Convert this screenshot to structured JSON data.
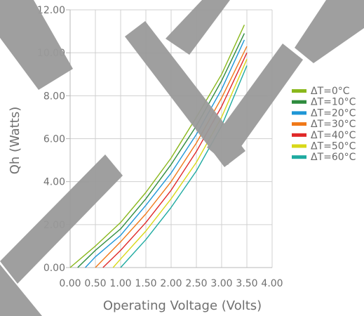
{
  "chart_data": {
    "type": "line",
    "xlabel": "Operating Voltage (Volts)",
    "ylabel": "Qh (Watts)",
    "xlim": [
      0,
      4
    ],
    "ylim": [
      0,
      12
    ],
    "x_ticks": [
      "0.00",
      "0.50",
      "1.00",
      "1.50",
      "2.00",
      "2.50",
      "3.00",
      "3.50",
      "4.00"
    ],
    "y_ticks": [
      "0.00",
      "2.00",
      "4.00",
      "6.00",
      "8.00",
      "10.00",
      "12.00"
    ],
    "grid": true,
    "legend_position": "right",
    "series": [
      {
        "name": "ΔT=0°C",
        "color": "#8ab81c",
        "points": [
          [
            0.0,
            0.0
          ],
          [
            0.5,
            1.0
          ],
          [
            1.0,
            2.1
          ],
          [
            1.5,
            3.5
          ],
          [
            2.0,
            5.1
          ],
          [
            2.5,
            7.0
          ],
          [
            3.0,
            9.0
          ],
          [
            3.45,
            11.3
          ]
        ]
      },
      {
        "name": "ΔT=10°C",
        "color": "#2e8b3e",
        "points": [
          [
            0.15,
            0.0
          ],
          [
            0.5,
            0.8
          ],
          [
            1.0,
            1.8
          ],
          [
            1.5,
            3.2
          ],
          [
            2.0,
            4.8
          ],
          [
            2.5,
            6.6
          ],
          [
            3.0,
            8.7
          ],
          [
            3.45,
            10.9
          ]
        ]
      },
      {
        "name": "ΔT=20°C",
        "color": "#1e96d6",
        "points": [
          [
            0.3,
            0.0
          ],
          [
            0.5,
            0.5
          ],
          [
            1.0,
            1.5
          ],
          [
            1.5,
            2.9
          ],
          [
            2.0,
            4.4
          ],
          [
            2.5,
            6.2
          ],
          [
            3.0,
            8.3
          ],
          [
            3.45,
            10.6
          ]
        ]
      },
      {
        "name": "ΔT=30°C",
        "color": "#f07818",
        "points": [
          [
            0.5,
            0.0
          ],
          [
            1.0,
            1.2
          ],
          [
            1.5,
            2.5
          ],
          [
            2.0,
            4.0
          ],
          [
            2.5,
            5.8
          ],
          [
            3.0,
            7.9
          ],
          [
            3.5,
            10.3
          ]
        ]
      },
      {
        "name": "ΔT=40°C",
        "color": "#e02828",
        "points": [
          [
            0.65,
            0.0
          ],
          [
            1.0,
            0.8
          ],
          [
            1.5,
            2.1
          ],
          [
            2.0,
            3.6
          ],
          [
            2.5,
            5.4
          ],
          [
            3.0,
            7.5
          ],
          [
            3.5,
            10.0
          ]
        ]
      },
      {
        "name": "ΔT=50°C",
        "color": "#d8d818",
        "points": [
          [
            0.85,
            0.0
          ],
          [
            1.0,
            0.4
          ],
          [
            1.5,
            1.7
          ],
          [
            2.0,
            3.2
          ],
          [
            2.5,
            4.9
          ],
          [
            3.0,
            7.0
          ],
          [
            3.5,
            9.7
          ]
        ]
      },
      {
        "name": "ΔT=60°C",
        "color": "#1eaaa0",
        "points": [
          [
            1.0,
            0.0
          ],
          [
            1.5,
            1.3
          ],
          [
            2.0,
            2.8
          ],
          [
            2.5,
            4.5
          ],
          [
            3.0,
            6.6
          ],
          [
            3.5,
            9.4
          ]
        ]
      }
    ]
  },
  "colors": {
    "grid": "#d0d0d0",
    "axis": "#b8b8b8",
    "watermark": "#9a9a9a"
  }
}
